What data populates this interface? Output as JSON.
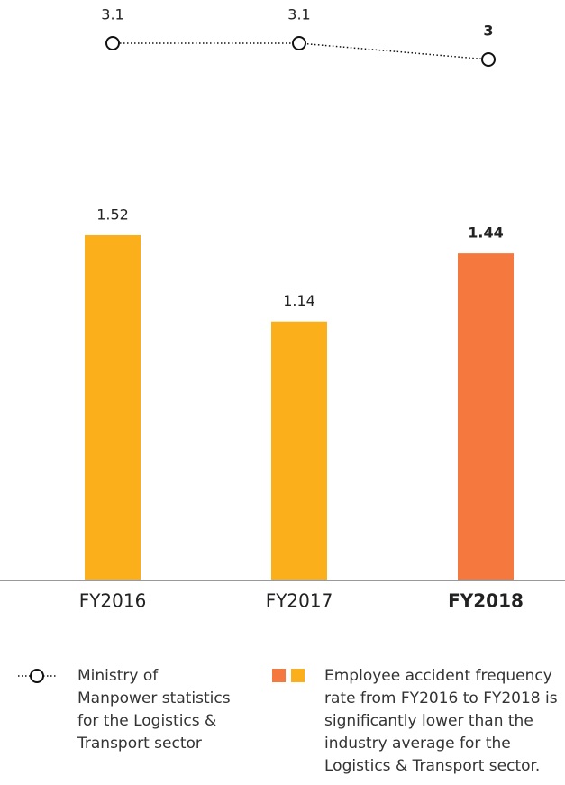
{
  "chart_data": {
    "type": "bar+line",
    "categories": [
      "FY2016",
      "FY2017",
      "FY2018"
    ],
    "series": [
      {
        "name": "Employee accident frequency rate from FY2016 to FY2018 is significantly lower than the industry average for the Logistics & Transport sector.",
        "type": "bar",
        "colors": [
          "#fbb01b",
          "#fbb01b",
          "#f5783e"
        ],
        "values": [
          1.52,
          1.14,
          1.44
        ]
      },
      {
        "name": "Ministry of Manpower statistics for the Logistics & Transport sector",
        "type": "line",
        "axis": "y2",
        "color": "#111111",
        "values": [
          3.1,
          3.1,
          3.0
        ]
      }
    ],
    "ylim": [
      0,
      2.5
    ],
    "y2lim": [
      2.8,
      3.2
    ]
  }
}
